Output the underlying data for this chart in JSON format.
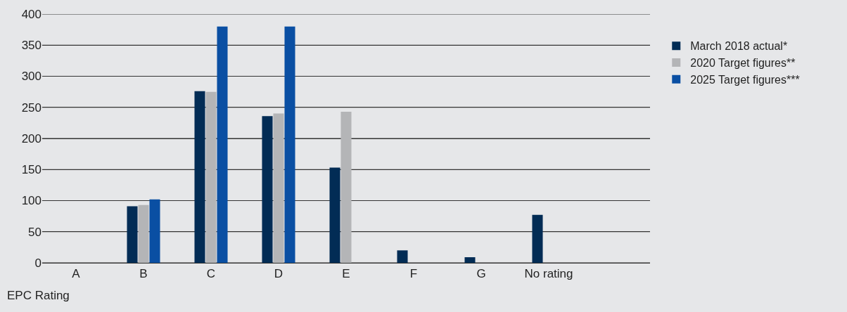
{
  "chart_data": {
    "type": "bar",
    "xlabel": "EPC Rating",
    "categories": [
      "A",
      "B",
      "C",
      "D",
      "E",
      "F",
      "G",
      "No rating"
    ],
    "series": [
      {
        "name": "March 2018 actual*",
        "color": "#022c55",
        "values": [
          null,
          91,
          276,
          236,
          153,
          20,
          9,
          77
        ]
      },
      {
        "name": "2020 Target figures**",
        "color": "#b4b5b7",
        "values": [
          null,
          93,
          275,
          240,
          243,
          null,
          null,
          null
        ]
      },
      {
        "name": "2025 Target figures***",
        "color": "#0a4fa3",
        "values": [
          null,
          102,
          380,
          380,
          null,
          null,
          null,
          null
        ]
      }
    ],
    "ylim": [
      0,
      400
    ],
    "yticks": [
      0,
      50,
      100,
      150,
      200,
      250,
      300,
      350,
      400
    ],
    "grid": "y",
    "legend": "top right"
  }
}
